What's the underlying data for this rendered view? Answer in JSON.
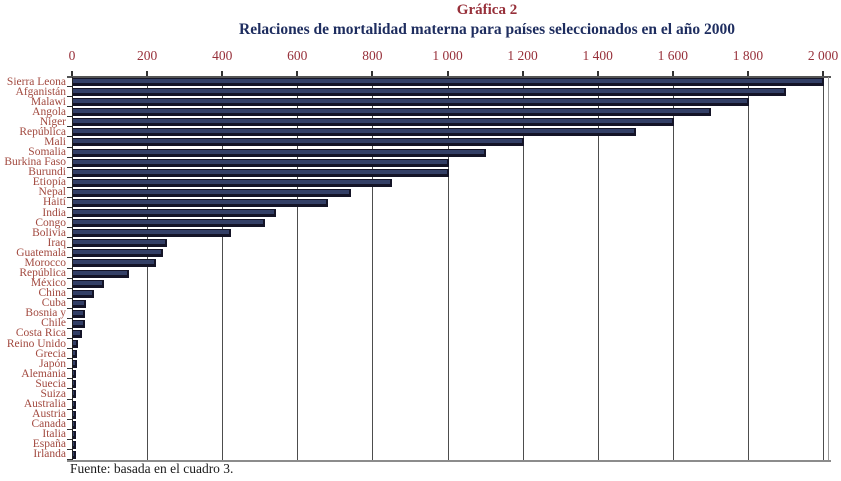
{
  "header": {
    "title": "Gráfica 2",
    "subtitle": "Relaciones de mortalidad materna para países seleccionados en el año 2000"
  },
  "footer": {
    "source": "Fuente: basada en el cuadro 3."
  },
  "colors": {
    "title": "#97303a",
    "subtitle": "#1e2d5f",
    "axis_labels": "#97303a",
    "category_labels": "#a2493f",
    "bar_fill": "#333f66",
    "bar_shadow": "#141427",
    "gridline": "#4d4d4d"
  },
  "chart_data": {
    "type": "bar",
    "orientation": "horizontal",
    "title": "Gráfica 2",
    "subtitle": "Relaciones de mortalidad materna para países seleccionados en el año 2000",
    "xlabel": "",
    "ylabel": "",
    "xlim": [
      0,
      2000
    ],
    "x_ticks": [
      0,
      200,
      400,
      600,
      800,
      1000,
      1200,
      1400,
      1600,
      1800,
      2000
    ],
    "x_tick_labels": [
      "0",
      "200",
      "400",
      "600",
      "800",
      "1 000",
      "1 200",
      "1 400",
      "1 600",
      "1 800",
      "2 000"
    ],
    "grid": "vertical gridlines every 200, x-axis on top",
    "legend": "none",
    "categories": [
      "Sierra Leona",
      "Afganistán",
      "Malawi",
      "Angola",
      "Niger",
      "República",
      "Mali",
      "Somalia",
      "Burkina Faso",
      "Burundi",
      "Etiopía",
      "Nepal",
      "Haití",
      "India",
      "Congo",
      "Bolivia",
      "Iraq",
      "Guatemala",
      "Morocco",
      "República",
      "México",
      "China",
      "Cuba",
      "Bosnia y",
      "Chile",
      "Costa Rica",
      "Reino Unido",
      "Grecia",
      "Japón",
      "Alemania",
      "Suecia",
      "Suiza",
      "Australia",
      "Austria",
      "Canada",
      "Italia",
      "España",
      "Irlanda"
    ],
    "values": [
      2000,
      1900,
      1800,
      1700,
      1600,
      1500,
      1200,
      1100,
      1000,
      1000,
      850,
      740,
      680,
      540,
      510,
      420,
      250,
      240,
      220,
      150,
      83,
      56,
      35,
      32,
      31,
      25,
      13,
      11,
      10,
      9,
      9,
      8,
      8,
      7,
      6,
      6,
      5,
      4
    ],
    "source": "Fuente: basada en el cuadro 3."
  }
}
